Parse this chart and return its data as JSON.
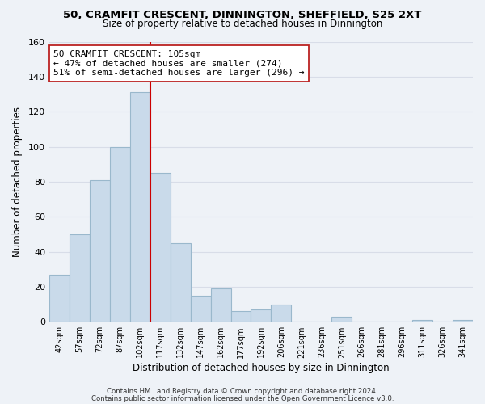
{
  "title": "50, CRAMFIT CRESCENT, DINNINGTON, SHEFFIELD, S25 2XT",
  "subtitle": "Size of property relative to detached houses in Dinnington",
  "xlabel": "Distribution of detached houses by size in Dinnington",
  "ylabel": "Number of detached properties",
  "bar_labels": [
    "42sqm",
    "57sqm",
    "72sqm",
    "87sqm",
    "102sqm",
    "117sqm",
    "132sqm",
    "147sqm",
    "162sqm",
    "177sqm",
    "192sqm",
    "206sqm",
    "221sqm",
    "236sqm",
    "251sqm",
    "266sqm",
    "281sqm",
    "296sqm",
    "311sqm",
    "326sqm",
    "341sqm"
  ],
  "bar_heights": [
    27,
    50,
    81,
    100,
    131,
    85,
    45,
    15,
    19,
    6,
    7,
    10,
    0,
    0,
    3,
    0,
    0,
    0,
    1,
    0,
    1
  ],
  "bar_color": "#c9daea",
  "bar_edge_color": "#9ab8cc",
  "vline_color": "#cc0000",
  "vline_index": 4,
  "ylim": [
    0,
    160
  ],
  "yticks": [
    0,
    20,
    40,
    60,
    80,
    100,
    120,
    140,
    160
  ],
  "annotation_title": "50 CRAMFIT CRESCENT: 105sqm",
  "annotation_line1": "← 47% of detached houses are smaller (274)",
  "annotation_line2": "51% of semi-detached houses are larger (296) →",
  "footer_line1": "Contains HM Land Registry data © Crown copyright and database right 2024.",
  "footer_line2": "Contains public sector information licensed under the Open Government Licence v3.0.",
  "grid_color": "#d8dde8",
  "background_color": "#eef2f7"
}
